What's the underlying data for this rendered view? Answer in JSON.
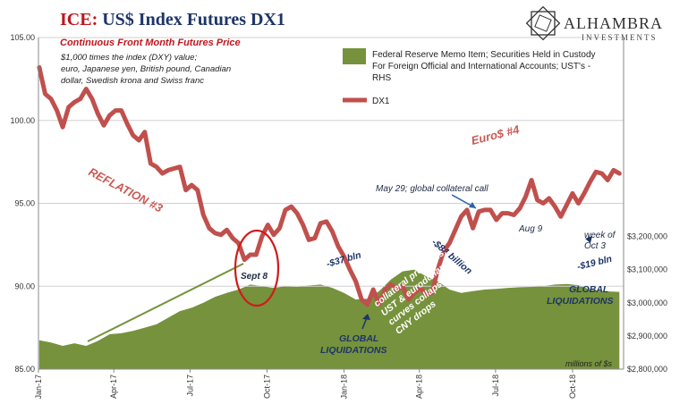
{
  "title": {
    "prefix": "ICE:",
    "rest": " US$ Index Futures DX1"
  },
  "subtitle": "Continuous  Front Month Futures Price",
  "description": [
    "$1,000 times the index (DXY) value;",
    "euro, Japanese yen, British pound, Canadian",
    "dollar, Swedish krona and Swiss franc"
  ],
  "logo": {
    "name": "ALHAMBRA",
    "sub": "INVESTMENTS"
  },
  "legend": {
    "fed": [
      "Federal Reserve Memo Item; Securities Held in Custody",
      "For Foreign Official and International Accounts; UST's -",
      "RHS"
    ],
    "dx1": "DX1"
  },
  "units_note": "millions of $s",
  "annotations": {
    "reflation": "REFLATION #3",
    "eurodollar": "Euro$ #4",
    "sept8": "Sept 8",
    "bln37": "-$37 bln",
    "bln84": "-$84 billion",
    "bln19": "-$19 bln",
    "may29": "May 29; global collateral call",
    "aug9": "Aug 9",
    "week_of": [
      "week of",
      "Oct 3"
    ],
    "global_liq_1": [
      "GLOBAL",
      "LIQUIDATIONS"
    ],
    "global_liq_2": [
      "GLOBAL",
      "LIQUIDATIONS"
    ],
    "collateral": [
      "collateral problems;",
      "UST & eurodollar",
      "curves collapse;",
      "CNY drops"
    ]
  },
  "colors": {
    "dx1": "#c0504d",
    "fed": "#76923c",
    "title_red": "#c0161c",
    "navy": "#1d3567"
  },
  "chart_data": {
    "type": "area",
    "x_ticks": [
      "Jan-17",
      "Apr-17",
      "Jul-17",
      "Oct-17",
      "Jan-18",
      "Apr-18",
      "Jul-18",
      "Oct-18"
    ],
    "y_left": {
      "range": [
        85,
        105
      ],
      "ticks": [
        "85.00",
        "90.00",
        "95.00",
        "100.00",
        "105.00"
      ]
    },
    "y_right": {
      "range": [
        2800000,
        3800000
      ],
      "ticks": [
        "$2,800,000",
        "$2,900,000",
        "$3,000,000",
        "$3,100,000",
        "$3,200,000"
      ]
    },
    "series": [
      {
        "name": "DX1",
        "axis": "left",
        "points": [
          [
            "2017-01-02",
            103.2
          ],
          [
            "2017-01-09",
            101.6
          ],
          [
            "2017-01-16",
            101.3
          ],
          [
            "2017-01-23",
            100.6
          ],
          [
            "2017-01-30",
            99.6
          ],
          [
            "2017-02-06",
            100.8
          ],
          [
            "2017-02-13",
            101.1
          ],
          [
            "2017-02-20",
            101.3
          ],
          [
            "2017-02-27",
            101.9
          ],
          [
            "2017-03-06",
            101.3
          ],
          [
            "2017-03-13",
            100.4
          ],
          [
            "2017-03-20",
            99.7
          ],
          [
            "2017-03-27",
            100.3
          ],
          [
            "2017-04-03",
            100.6
          ],
          [
            "2017-04-10",
            100.6
          ],
          [
            "2017-04-17",
            99.8
          ],
          [
            "2017-04-24",
            99.1
          ],
          [
            "2017-05-01",
            98.8
          ],
          [
            "2017-05-08",
            99.3
          ],
          [
            "2017-05-15",
            97.4
          ],
          [
            "2017-05-22",
            97.2
          ],
          [
            "2017-05-29",
            96.8
          ],
          [
            "2017-06-05",
            97.0
          ],
          [
            "2017-06-12",
            97.1
          ],
          [
            "2017-06-19",
            97.2
          ],
          [
            "2017-06-26",
            95.8
          ],
          [
            "2017-07-03",
            96.1
          ],
          [
            "2017-07-10",
            95.8
          ],
          [
            "2017-07-17",
            94.3
          ],
          [
            "2017-07-24",
            93.5
          ],
          [
            "2017-07-31",
            93.2
          ],
          [
            "2017-08-07",
            93.1
          ],
          [
            "2017-08-14",
            93.4
          ],
          [
            "2017-08-21",
            92.9
          ],
          [
            "2017-08-28",
            92.6
          ],
          [
            "2017-09-04",
            91.6
          ],
          [
            "2017-09-11",
            91.9
          ],
          [
            "2017-09-18",
            91.9
          ],
          [
            "2017-09-25",
            93.0
          ],
          [
            "2017-10-02",
            93.7
          ],
          [
            "2017-10-09",
            93.1
          ],
          [
            "2017-10-16",
            93.5
          ],
          [
            "2017-10-23",
            94.6
          ],
          [
            "2017-10-30",
            94.8
          ],
          [
            "2017-11-06",
            94.4
          ],
          [
            "2017-11-13",
            93.7
          ],
          [
            "2017-11-20",
            92.8
          ],
          [
            "2017-11-27",
            92.9
          ],
          [
            "2017-12-04",
            93.8
          ],
          [
            "2017-12-11",
            93.9
          ],
          [
            "2017-12-18",
            93.3
          ],
          [
            "2017-12-25",
            92.4
          ],
          [
            "2018-01-01",
            91.8
          ],
          [
            "2018-01-08",
            91.0
          ],
          [
            "2018-01-15",
            90.3
          ],
          [
            "2018-01-22",
            89.2
          ],
          [
            "2018-01-29",
            88.9
          ],
          [
            "2018-02-05",
            89.8
          ],
          [
            "2018-02-12",
            88.9
          ],
          [
            "2018-02-19",
            89.8
          ],
          [
            "2018-02-26",
            90.1
          ],
          [
            "2018-03-05",
            89.8
          ],
          [
            "2018-03-12",
            90.0
          ],
          [
            "2018-03-19",
            89.2
          ],
          [
            "2018-03-26",
            89.6
          ],
          [
            "2018-04-02",
            89.9
          ],
          [
            "2018-04-09",
            89.5
          ],
          [
            "2018-04-16",
            89.6
          ],
          [
            "2018-04-23",
            91.0
          ],
          [
            "2018-04-30",
            92.1
          ],
          [
            "2018-05-07",
            92.6
          ],
          [
            "2018-05-14",
            93.4
          ],
          [
            "2018-05-21",
            94.2
          ],
          [
            "2018-05-28",
            94.6
          ],
          [
            "2018-06-04",
            93.5
          ],
          [
            "2018-06-11",
            94.5
          ],
          [
            "2018-06-18",
            94.6
          ],
          [
            "2018-06-25",
            94.6
          ],
          [
            "2018-07-02",
            94.0
          ],
          [
            "2018-07-09",
            94.4
          ],
          [
            "2018-07-16",
            94.4
          ],
          [
            "2018-07-23",
            94.3
          ],
          [
            "2018-07-30",
            94.7
          ],
          [
            "2018-08-06",
            95.4
          ],
          [
            "2018-08-13",
            96.4
          ],
          [
            "2018-08-20",
            95.2
          ],
          [
            "2018-08-27",
            95.0
          ],
          [
            "2018-09-03",
            95.3
          ],
          [
            "2018-09-10",
            94.8
          ],
          [
            "2018-09-17",
            94.2
          ],
          [
            "2018-09-24",
            94.9
          ],
          [
            "2018-10-01",
            95.6
          ],
          [
            "2018-10-08",
            95.0
          ],
          [
            "2018-10-15",
            95.6
          ],
          [
            "2018-10-22",
            96.3
          ],
          [
            "2018-10-29",
            96.9
          ],
          [
            "2018-11-05",
            96.8
          ],
          [
            "2018-11-12",
            96.4
          ],
          [
            "2018-11-19",
            97.0
          ],
          [
            "2018-11-26",
            96.8
          ]
        ]
      },
      {
        "name": "Federal Reserve Memo Item; Securities Held in Custody For Foreign Official and International Accounts; UST's - RHS",
        "axis": "right",
        "points": [
          [
            "2017-01-02",
            2887000
          ],
          [
            "2017-01-16",
            2880000
          ],
          [
            "2017-01-30",
            2870000
          ],
          [
            "2017-02-13",
            2878000
          ],
          [
            "2017-02-27",
            2870000
          ],
          [
            "2017-03-13",
            2885000
          ],
          [
            "2017-03-27",
            2905000
          ],
          [
            "2017-04-10",
            2908000
          ],
          [
            "2017-04-24",
            2915000
          ],
          [
            "2017-05-08",
            2925000
          ],
          [
            "2017-05-22",
            2935000
          ],
          [
            "2017-06-05",
            2955000
          ],
          [
            "2017-06-19",
            2975000
          ],
          [
            "2017-07-03",
            2985000
          ],
          [
            "2017-07-17",
            3000000
          ],
          [
            "2017-07-31",
            3018000
          ],
          [
            "2017-08-14",
            3030000
          ],
          [
            "2017-08-28",
            3040000
          ],
          [
            "2017-09-11",
            3055000
          ],
          [
            "2017-09-25",
            3050000
          ],
          [
            "2017-10-09",
            3045000
          ],
          [
            "2017-10-23",
            3050000
          ],
          [
            "2017-11-06",
            3048000
          ],
          [
            "2017-11-20",
            3052000
          ],
          [
            "2017-12-04",
            3055000
          ],
          [
            "2017-12-18",
            3045000
          ],
          [
            "2018-01-01",
            3030000
          ],
          [
            "2018-01-15",
            3010000
          ],
          [
            "2018-01-29",
            3012000
          ],
          [
            "2018-02-12",
            3035000
          ],
          [
            "2018-02-26",
            3070000
          ],
          [
            "2018-03-12",
            3095000
          ],
          [
            "2018-03-26",
            3100000
          ],
          [
            "2018-04-09",
            3080000
          ],
          [
            "2018-04-23",
            3065000
          ],
          [
            "2018-05-07",
            3040000
          ],
          [
            "2018-05-21",
            3030000
          ],
          [
            "2018-06-04",
            3035000
          ],
          [
            "2018-06-18",
            3040000
          ],
          [
            "2018-07-02",
            3042000
          ],
          [
            "2018-07-16",
            3045000
          ],
          [
            "2018-07-30",
            3047000
          ],
          [
            "2018-08-13",
            3048000
          ],
          [
            "2018-08-27",
            3050000
          ],
          [
            "2018-09-10",
            3055000
          ],
          [
            "2018-09-24",
            3057000
          ],
          [
            "2018-10-08",
            3053000
          ],
          [
            "2018-10-22",
            3040000
          ],
          [
            "2018-11-05",
            3035000
          ],
          [
            "2018-11-26",
            3033000
          ]
        ]
      }
    ]
  }
}
